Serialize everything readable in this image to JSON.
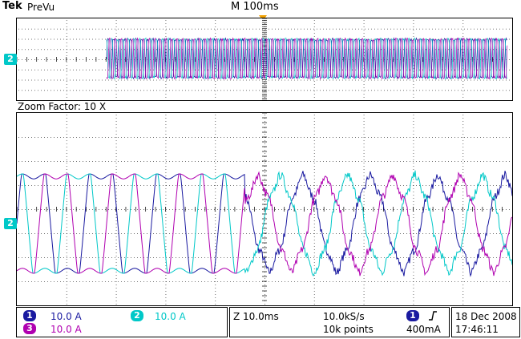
{
  "header": {
    "brand": "Tek",
    "mode": "PreVu",
    "timebase": "M 100ms"
  },
  "zoom": {
    "label": "Zoom Factor: 10 X"
  },
  "markers": {
    "ch2_marker": "2"
  },
  "channels": [
    {
      "id": "1",
      "scale": "10.0 A",
      "color": "#1a1aa0"
    },
    {
      "id": "2",
      "scale": "10.0 A",
      "color": "#00c8c8"
    },
    {
      "id": "3",
      "scale": "10.0 A",
      "color": "#b000b0"
    }
  ],
  "timing": {
    "zoom_time": "Z 10.0ms",
    "sample_rate": "10.0kS/s",
    "record_length": "10k points",
    "trigger_channel": "1",
    "trigger_slope_icon": "rising-edge-icon",
    "trigger_level": "400mA"
  },
  "datetime": {
    "date": "18 Dec  2008",
    "time": "17:46:11"
  },
  "colors": {
    "trigger_orange": "#f0a000",
    "ch1": "#1a1aa0",
    "ch2": "#00c8c8",
    "ch3": "#b000b0",
    "grid": "#000000"
  }
}
